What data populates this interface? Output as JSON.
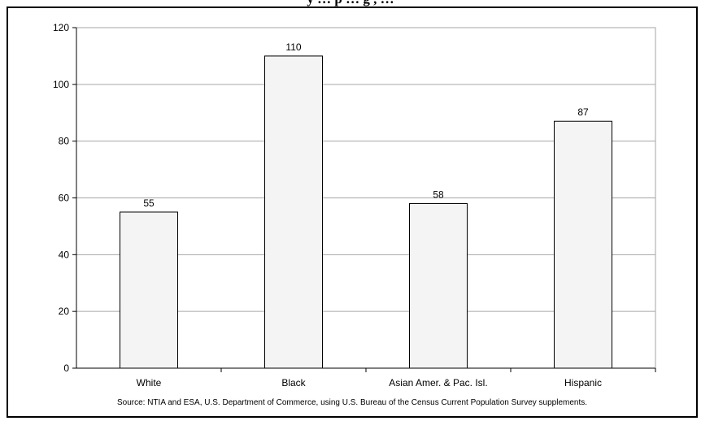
{
  "chart_data": {
    "type": "bar",
    "title": "",
    "title_fragment": "y … p … g , …",
    "categories": [
      "White",
      "Black",
      "Asian Amer. & Pac. Isl.",
      "Hispanic"
    ],
    "values": [
      55,
      110,
      58,
      87
    ],
    "data_labels": [
      "55",
      "110",
      "58",
      "87"
    ],
    "ylim": [
      0,
      120
    ],
    "yticks": [
      0,
      20,
      40,
      60,
      80,
      100,
      120
    ],
    "ytick_labels": [
      "0",
      "20",
      "40",
      "60",
      "80",
      "100",
      "120"
    ],
    "grid": true,
    "legend": "none",
    "xlabel": "",
    "ylabel": "",
    "source": "Source:  NTIA and ESA, U.S. Department of Commerce, using U.S. Bureau of the Census Current Population Survey supplements.",
    "colors": {
      "bar_fill": "#f4f4f4",
      "bar_stroke": "#000000",
      "grid": "#a6a6a6",
      "plot_border": "#a6a6a6"
    }
  }
}
